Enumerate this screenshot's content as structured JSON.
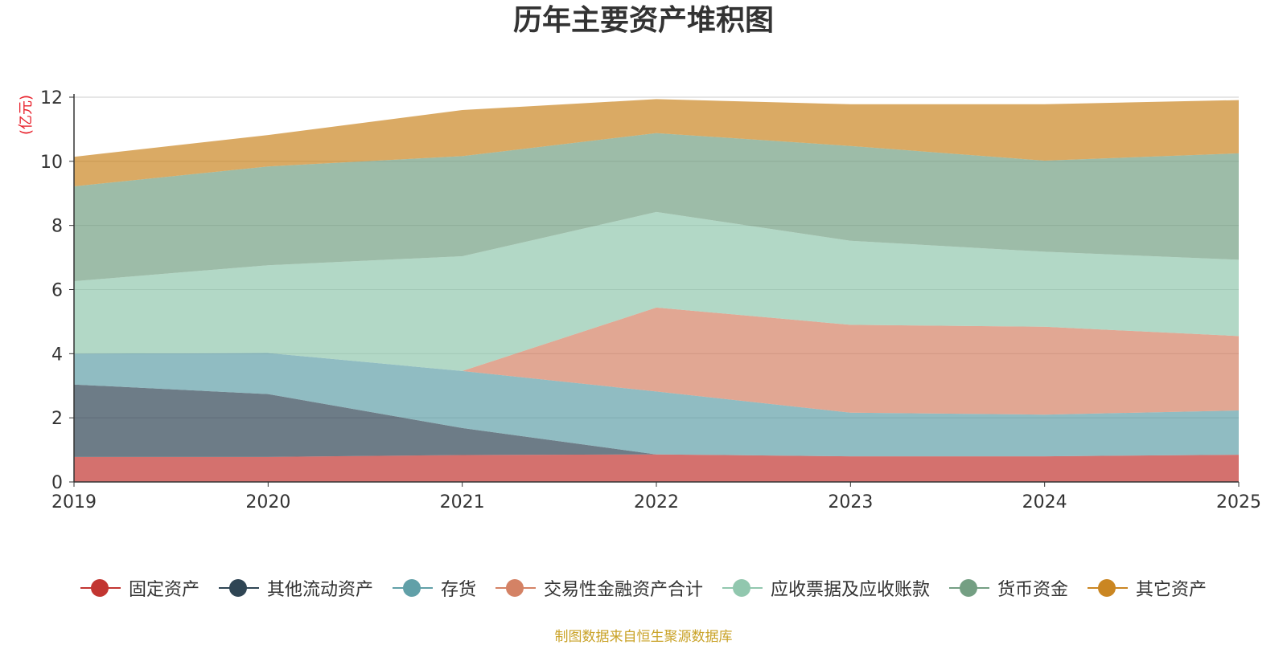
{
  "title": "历年主要资产堆积图",
  "source_note": "制图数据来自恒生聚源数据库",
  "chart_data": {
    "type": "area",
    "stacked": true,
    "title": "历年主要资产堆积图",
    "unit": "(亿元)",
    "xlabel": "",
    "ylabel": "(亿元)",
    "x": [
      "2019",
      "2020",
      "2021",
      "2022",
      "2023",
      "2024",
      "2025"
    ],
    "ylim": [
      0,
      12
    ],
    "yticks": [
      0,
      2,
      4,
      6,
      8,
      10,
      12
    ],
    "grid": true,
    "legend_position": "bottom",
    "series": [
      {
        "name": "固定资产",
        "color": "#c23531",
        "values": [
          0.78,
          0.78,
          0.84,
          0.86,
          0.8,
          0.8,
          0.85
        ]
      },
      {
        "name": "其他流动资产",
        "color": "#2f4554",
        "values": [
          2.26,
          1.96,
          0.84,
          0.0,
          0.0,
          0.0,
          0.0
        ]
      },
      {
        "name": "存货",
        "color": "#61a0a8",
        "values": [
          0.96,
          1.28,
          1.78,
          1.96,
          1.36,
          1.3,
          1.38
        ]
      },
      {
        "name": "交易性金融资产合计",
        "color": "#d48265",
        "values": [
          0.0,
          0.0,
          0.0,
          2.62,
          2.74,
          2.74,
          2.32
        ]
      },
      {
        "name": "应收票据及应收账款",
        "color": "#91c7ae",
        "values": [
          2.26,
          2.74,
          3.58,
          2.98,
          2.62,
          2.34,
          2.38
        ]
      },
      {
        "name": "货币资金",
        "color": "#749f83",
        "values": [
          2.96,
          3.08,
          3.12,
          2.46,
          2.96,
          2.84,
          3.32
        ]
      },
      {
        "name": "其它资产",
        "color": "#ca8622",
        "values": [
          0.92,
          0.98,
          1.44,
          1.06,
          1.3,
          1.76,
          1.66
        ]
      }
    ]
  }
}
